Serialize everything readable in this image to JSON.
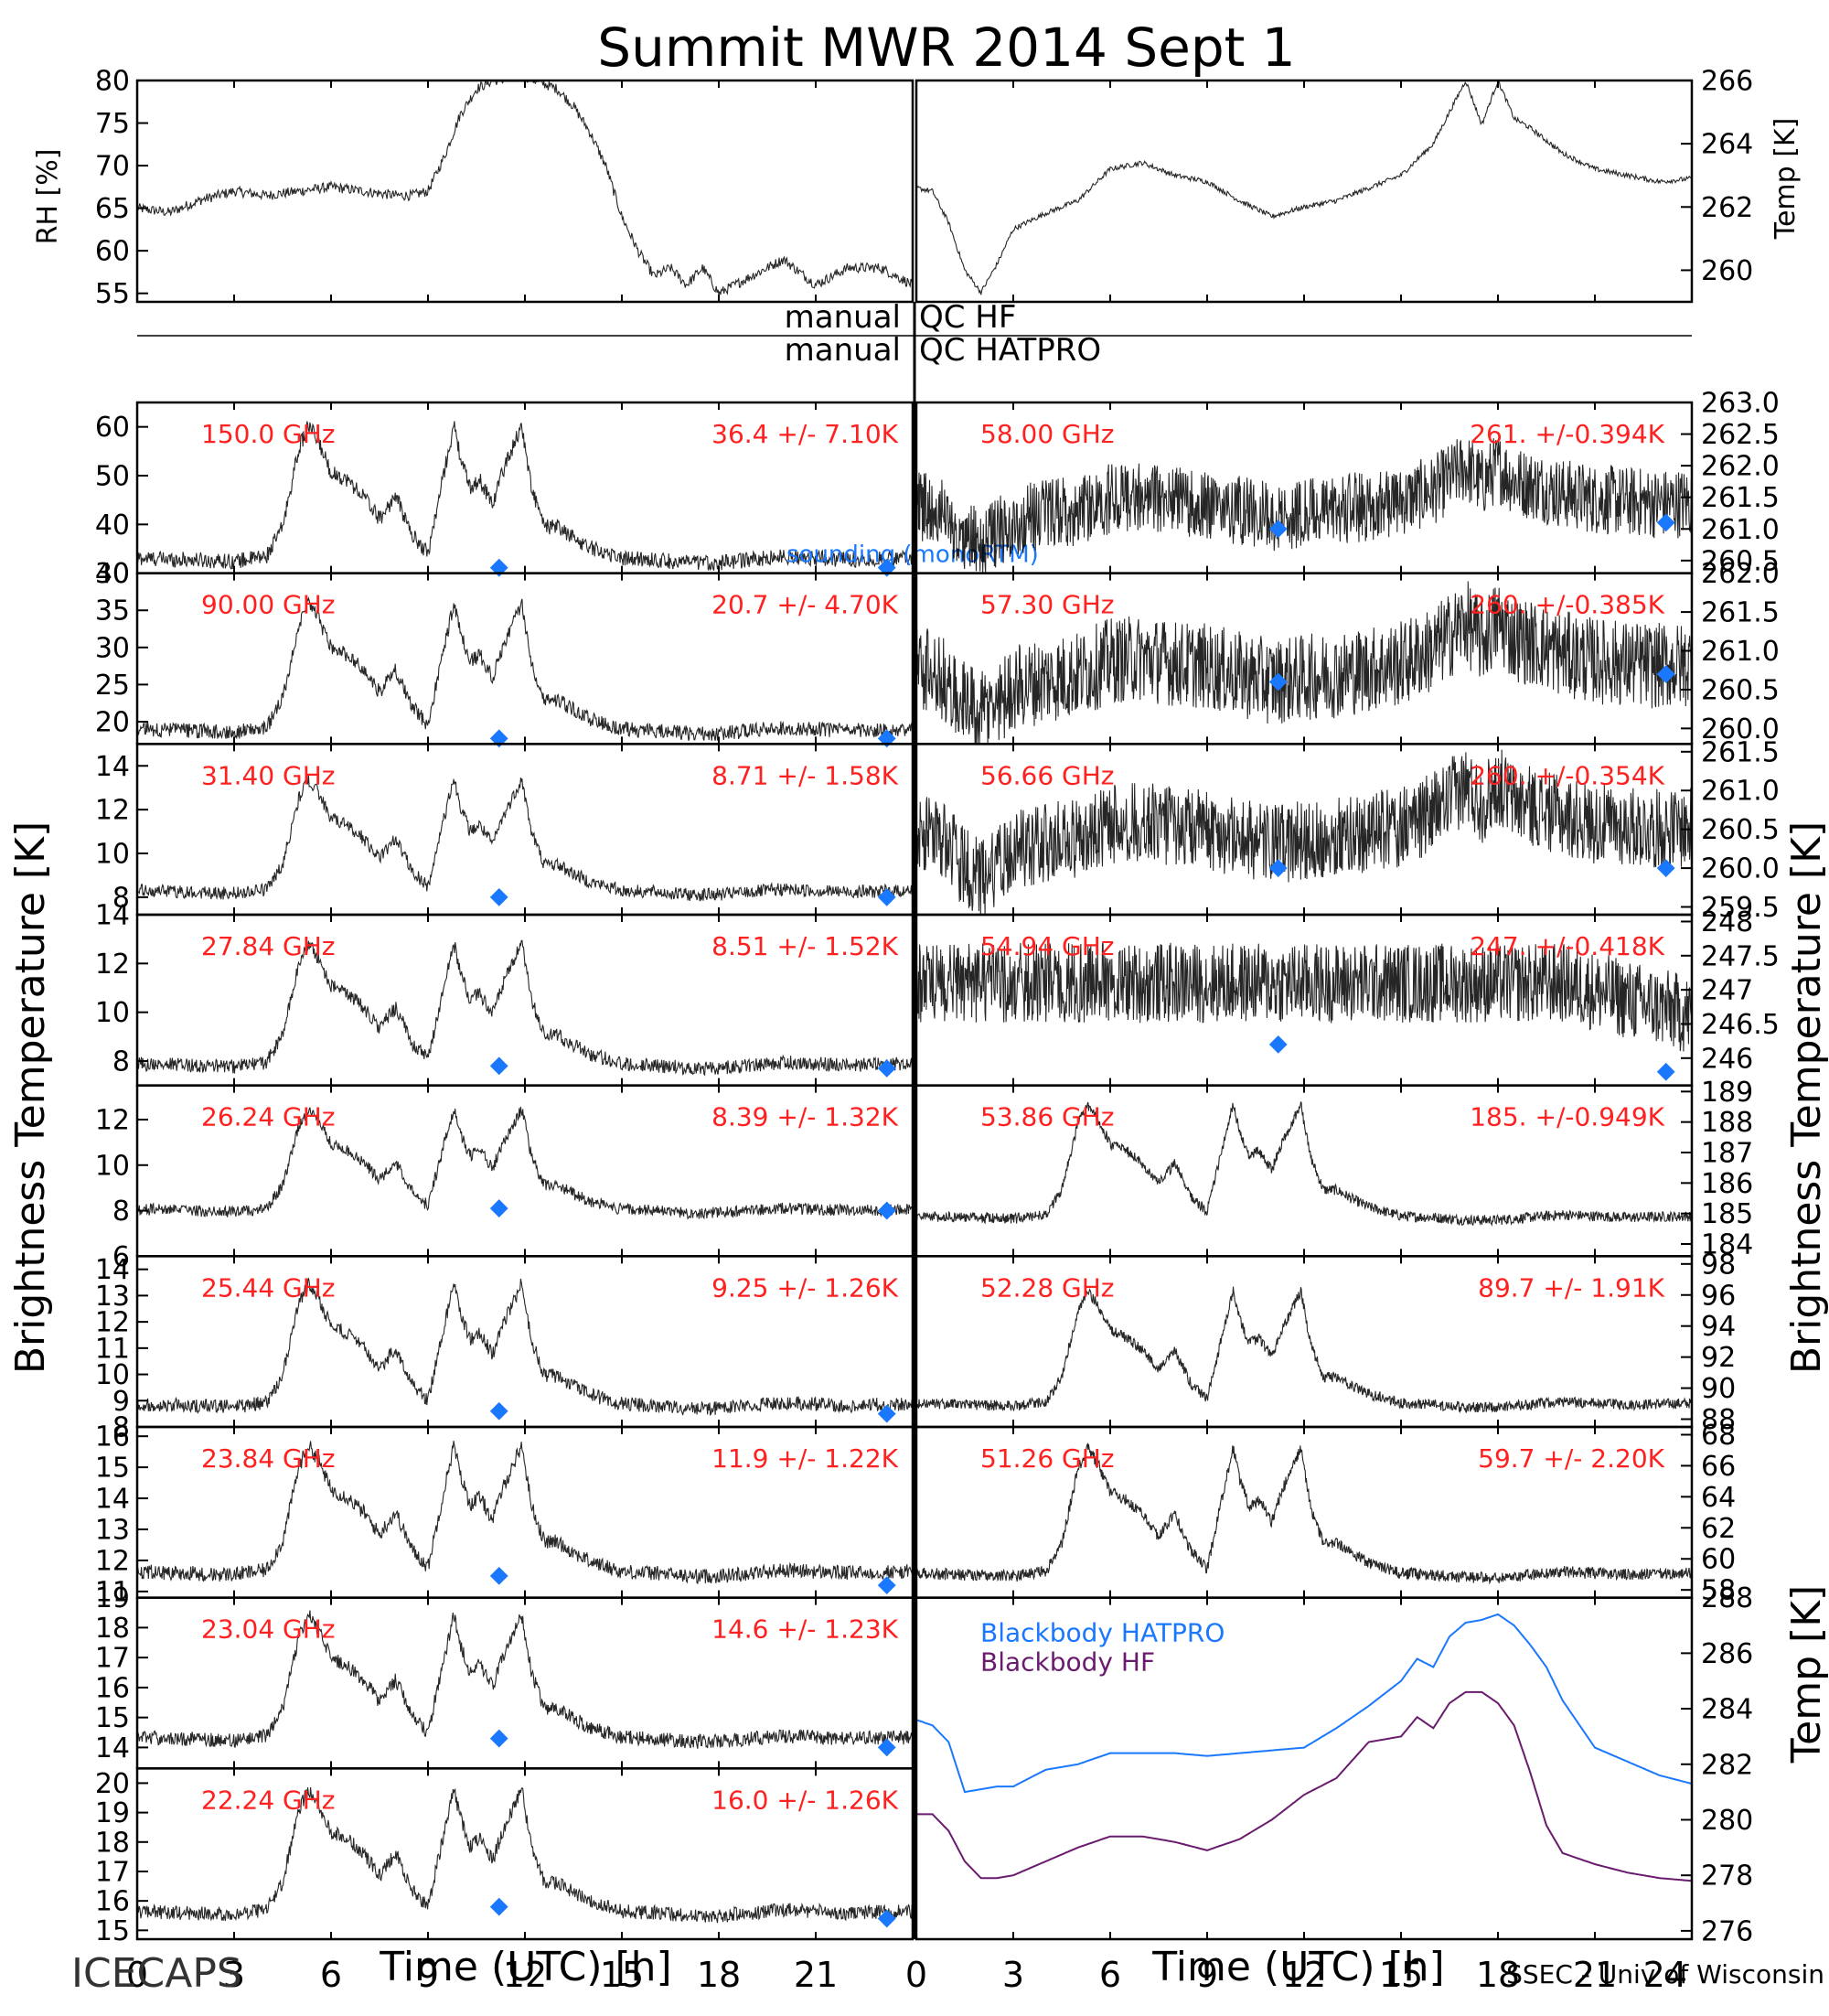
{
  "title": "Summit MWR 2014 Sept  1",
  "footer": {
    "project": "ICECAPS",
    "credit": "SSEC - Univ of Wisconsin"
  },
  "qc": {
    "left_top": "manual",
    "right_top": "QC HF",
    "left_bottom": "manual",
    "right_bottom": "QC HATPRO"
  },
  "axis_labels": {
    "bt_left": "Brightness Temperature [K]",
    "bt_right": "Brightness Temperature [K]",
    "rh": "RH [%]",
    "temp_top": "Temp [K]",
    "temp_bottom": "Temp [K]",
    "time_left": "Time (UTC) [h]",
    "time_right": "Time (UTC) [h]"
  },
  "colors": {
    "trace": "#000000",
    "channel_label": "#ff2020",
    "sounding": "#1a78ff",
    "hatpro": "#1a78ff",
    "hf": "#6a1b6e",
    "qc_line": "#000000"
  },
  "chart_data": {
    "type": "line",
    "time_axis": {
      "xlim": [
        0,
        24
      ],
      "ticks": [
        0,
        3,
        6,
        9,
        12,
        15,
        18,
        21,
        24
      ],
      "tick_labels_left": [
        "0",
        "3",
        "6",
        "9",
        "12",
        "15",
        "18",
        "21"
      ],
      "tick_labels_right": [
        "0",
        "3",
        "6",
        "9",
        "12",
        "15",
        "18",
        "21",
        "24"
      ]
    },
    "top_left": {
      "ylabel": "RH [%]",
      "ylim": [
        54,
        80
      ],
      "ticks": [
        55,
        60,
        65,
        70,
        75,
        80
      ],
      "series": [
        {
          "x": [
            0,
            1,
            2,
            3,
            4,
            5,
            6,
            7,
            8,
            8.5,
            9,
            9.5,
            10,
            10.5,
            11,
            12,
            13,
            13.5,
            14,
            14.5,
            15,
            15.5,
            16,
            16.5,
            17,
            17.5,
            18,
            19,
            20,
            21,
            22,
            23,
            24
          ],
          "y": [
            65,
            64.5,
            66,
            67,
            66.5,
            67,
            67.5,
            67,
            66.5,
            66.5,
            67,
            71,
            76,
            79,
            80,
            80.5,
            79,
            77,
            74,
            70,
            64,
            60,
            57,
            58,
            56,
            58,
            55,
            57,
            59,
            56,
            58,
            58,
            56
          ]
        }
      ]
    },
    "top_right": {
      "ylabel": "Temp [K]",
      "ylim": [
        259,
        266
      ],
      "ticks": [
        260,
        262,
        264,
        266
      ],
      "series": [
        {
          "x": [
            0,
            0.5,
            1,
            1.5,
            2,
            2.5,
            3,
            4,
            5,
            6,
            7,
            8,
            9,
            10,
            11,
            12,
            13,
            14,
            15,
            15.5,
            16,
            16.5,
            17,
            17.5,
            18,
            18.5,
            19,
            20,
            21,
            22,
            23,
            24
          ],
          "y": [
            262.6,
            262.5,
            261.5,
            260,
            259.3,
            260.2,
            261.3,
            261.8,
            262.2,
            263.2,
            263.4,
            263.0,
            262.8,
            262.2,
            261.7,
            262.0,
            262.2,
            262.6,
            263.0,
            263.5,
            264.0,
            265.0,
            266.0,
            264.6,
            266.0,
            264.8,
            264.5,
            263.7,
            263.2,
            263.0,
            262.8,
            262.9
          ]
        }
      ]
    },
    "qc_rows": [
      {
        "left": "manual",
        "right": "QC HF"
      },
      {
        "left": "manual",
        "right": "QC HATPRO"
      }
    ],
    "tb_panels_left": [
      {
        "freq": "150.0 GHz",
        "stat": "36.4 +/-  7.10K",
        "ylim": [
          30,
          65
        ],
        "ticks": [
          30,
          40,
          50,
          60
        ],
        "base": 31.5,
        "amp": 32,
        "sounding": [
          {
            "x": 11.2,
            "y": 31
          },
          {
            "x": 23.2,
            "y": 30.5
          }
        ]
      },
      {
        "freq": "90.00 GHz",
        "stat": "20.7 +/-  4.70K",
        "ylim": [
          17,
          40
        ],
        "ticks": [
          20,
          25,
          30,
          35,
          40
        ],
        "base": 18,
        "amp": 20,
        "sounding": [
          {
            "x": 11.2,
            "y": 17.5
          },
          {
            "x": 23.2,
            "y": 17.5
          }
        ]
      },
      {
        "freq": "31.40 GHz",
        "stat": "8.71 +/- 1.58K",
        "ylim": [
          7.2,
          15
        ],
        "ticks": [
          8,
          10,
          12,
          14
        ],
        "base": 8,
        "amp": 6,
        "sounding": [
          {
            "x": 11.2,
            "y": 8
          },
          {
            "x": 23.2,
            "y": 8
          }
        ]
      },
      {
        "freq": "27.84 GHz",
        "stat": "8.51 +/- 1.52K",
        "ylim": [
          7,
          14
        ],
        "ticks": [
          8,
          10,
          12,
          14
        ],
        "base": 7.6,
        "amp": 5.8,
        "sounding": [
          {
            "x": 11.2,
            "y": 7.8
          },
          {
            "x": 23.2,
            "y": 7.7
          }
        ]
      },
      {
        "freq": "26.24 GHz",
        "stat": "8.39 +/- 1.32K",
        "ylim": [
          6,
          13.5
        ],
        "ticks": [
          6,
          8,
          10,
          12
        ],
        "base": 7.8,
        "amp": 5.2,
        "sounding": [
          {
            "x": 11.2,
            "y": 8.1
          },
          {
            "x": 23.2,
            "y": 8
          }
        ]
      },
      {
        "freq": "25.44 GHz",
        "stat": "9.25 +/- 1.26K",
        "ylim": [
          8,
          14.5
        ],
        "ticks": [
          8,
          9,
          10,
          11,
          12,
          13,
          14
        ],
        "base": 8.6,
        "amp": 5.4,
        "sounding": [
          {
            "x": 11.2,
            "y": 8.6
          },
          {
            "x": 23.2,
            "y": 8.5
          }
        ]
      },
      {
        "freq": "23.84 GHz",
        "stat": "11.9 +/- 1.22K",
        "ylim": [
          10.8,
          16.3
        ],
        "ticks": [
          11,
          12,
          13,
          14,
          15,
          16
        ],
        "base": 11.4,
        "amp": 4.8,
        "sounding": [
          {
            "x": 11.2,
            "y": 11.5
          },
          {
            "x": 23.2,
            "y": 11.2
          }
        ]
      },
      {
        "freq": "23.04 GHz",
        "stat": "14.6 +/- 1.23K",
        "ylim": [
          13.3,
          19
        ],
        "ticks": [
          14,
          15,
          16,
          17,
          18,
          19
        ],
        "base": 14.1,
        "amp": 4.8,
        "sounding": [
          {
            "x": 11.2,
            "y": 14.3
          },
          {
            "x": 23.2,
            "y": 14
          }
        ]
      },
      {
        "freq": "22.24 GHz",
        "stat": "16.0 +/- 1.26K",
        "ylim": [
          14.7,
          20.5
        ],
        "ticks": [
          15,
          16,
          17,
          18,
          19,
          20
        ],
        "base": 15.4,
        "amp": 4.9,
        "sounding": [
          {
            "x": 11.2,
            "y": 15.8
          },
          {
            "x": 23.2,
            "y": 15.4
          }
        ]
      }
    ],
    "tb_panels_right": [
      {
        "freq": "58.00 GHz",
        "stat": "261. +/-0.394K",
        "ylim": [
          260.3,
          263
        ],
        "ticks": [
          260.5,
          261.0,
          261.5,
          262.0,
          262.5,
          263.0
        ],
        "tick_labels": [
          "260.5",
          "261.0",
          "261.5",
          "262.0",
          "262.5",
          "263.0"
        ],
        "kind": "noise_temp",
        "mean": 261.4,
        "noise": 0.4,
        "sounding": [
          {
            "x": 11.2,
            "y": 261
          },
          {
            "x": 23.2,
            "y": 261.1
          }
        ]
      },
      {
        "freq": "57.30 GHz",
        "stat": "260. +/-0.385K",
        "ylim": [
          259.8,
          262
        ],
        "ticks": [
          260.0,
          260.5,
          261.0,
          261.5,
          262.0
        ],
        "tick_labels": [
          "260.0",
          "260.5",
          "261.0",
          "261.5",
          "262.0"
        ],
        "kind": "noise_temp",
        "mean": 260.8,
        "noise": 0.4,
        "sounding": [
          {
            "x": 11.2,
            "y": 260.6
          },
          {
            "x": 23.2,
            "y": 260.7
          }
        ]
      },
      {
        "freq": "56.66 GHz",
        "stat": "260. +/-0.354K",
        "ylim": [
          259.4,
          261.6
        ],
        "ticks": [
          259.5,
          260.0,
          260.5,
          261.0,
          261.5
        ],
        "tick_labels": [
          "259.5",
          "260.0",
          "260.5",
          "261.0",
          "261.5"
        ],
        "kind": "noise_temp",
        "mean": 260.5,
        "noise": 0.37,
        "sounding": [
          {
            "x": 11.2,
            "y": 260.0
          },
          {
            "x": 23.2,
            "y": 260.0
          }
        ]
      },
      {
        "freq": "54.94 GHz",
        "stat": "247. +/-0.418K",
        "ylim": [
          245.6,
          248.1
        ],
        "ticks": [
          246,
          246.5,
          247,
          247.5,
          248
        ],
        "tick_labels": [
          "246",
          "246.5",
          "247",
          "247.5",
          "248"
        ],
        "kind": "noise_flat",
        "mean": 247.1,
        "noise": 0.42,
        "sounding": [
          {
            "x": 11.2,
            "y": 246.2
          },
          {
            "x": 23.2,
            "y": 245.8
          }
        ]
      },
      {
        "freq": "53.86 GHz",
        "stat": "185. +/-0.949K",
        "ylim": [
          183.6,
          189.2
        ],
        "ticks": [
          184,
          185,
          186,
          187,
          188,
          189
        ],
        "tick_labels": [
          "184",
          "185",
          "186",
          "187",
          "188",
          "189"
        ],
        "kind": "peaks",
        "base": 184.7,
        "amp": 4.3
      },
      {
        "freq": "52.28 GHz",
        "stat": "89.7 +/-  1.91K",
        "ylim": [
          87.5,
          98.5
        ],
        "ticks": [
          88,
          90,
          92,
          94,
          96,
          98
        ],
        "tick_labels": [
          "88",
          "90",
          "92",
          "94",
          "96",
          "98"
        ],
        "kind": "peaks",
        "base": 88.6,
        "amp": 8.5
      },
      {
        "freq": "51.26 GHz",
        "stat": "59.7 +/-  2.20K",
        "ylim": [
          57.5,
          68.5
        ],
        "ticks": [
          58,
          60,
          62,
          64,
          66,
          68
        ],
        "tick_labels": [
          "58",
          "60",
          "62",
          "64",
          "66",
          "68"
        ],
        "kind": "peaks",
        "base": 58.6,
        "amp": 9.5
      }
    ],
    "blackbody": {
      "ylim": [
        275.7,
        288
      ],
      "ticks": [
        276,
        278,
        280,
        282,
        284,
        286,
        288
      ],
      "ylabel": "Temp [K]",
      "series": [
        {
          "name": "Blackbody HATPRO",
          "x": [
            0,
            0.5,
            1,
            1.5,
            2,
            2.5,
            3,
            4,
            5,
            6,
            7,
            8,
            9,
            10,
            11,
            12,
            13,
            14,
            15,
            15.5,
            16,
            16.5,
            17,
            17.5,
            18,
            18.5,
            19,
            19.5,
            20,
            21,
            22,
            23,
            24
          ],
          "y": [
            283.6,
            283.4,
            282.8,
            281.0,
            281.1,
            281.2,
            281.2,
            281.8,
            282.0,
            282.4,
            282.4,
            282.4,
            282.3,
            282.4,
            282.5,
            282.6,
            283.3,
            284.1,
            285.0,
            285.8,
            285.5,
            286.6,
            287.1,
            287.2,
            287.4,
            287.0,
            286.3,
            285.5,
            284.3,
            282.6,
            282.1,
            281.6,
            281.3
          ]
        },
        {
          "name": "Blackbody HF",
          "x": [
            0,
            0.5,
            1,
            1.5,
            2,
            2.5,
            3,
            4,
            5,
            6,
            7,
            8,
            9,
            10,
            11,
            12,
            13,
            14,
            15,
            15.5,
            16,
            16.5,
            17,
            17.5,
            18,
            18.5,
            19,
            19.5,
            20,
            21,
            22,
            23,
            24
          ],
          "y": [
            280.2,
            280.2,
            279.6,
            278.5,
            277.9,
            277.9,
            278.0,
            278.5,
            279.0,
            279.4,
            279.4,
            279.2,
            278.9,
            279.3,
            280.0,
            280.9,
            281.5,
            282.8,
            283.0,
            283.7,
            283.3,
            284.2,
            284.6,
            284.6,
            284.2,
            283.4,
            281.7,
            279.8,
            278.8,
            278.4,
            278.1,
            277.9,
            277.8
          ]
        }
      ]
    },
    "sounding_label": "sounding (monoRTM)"
  }
}
